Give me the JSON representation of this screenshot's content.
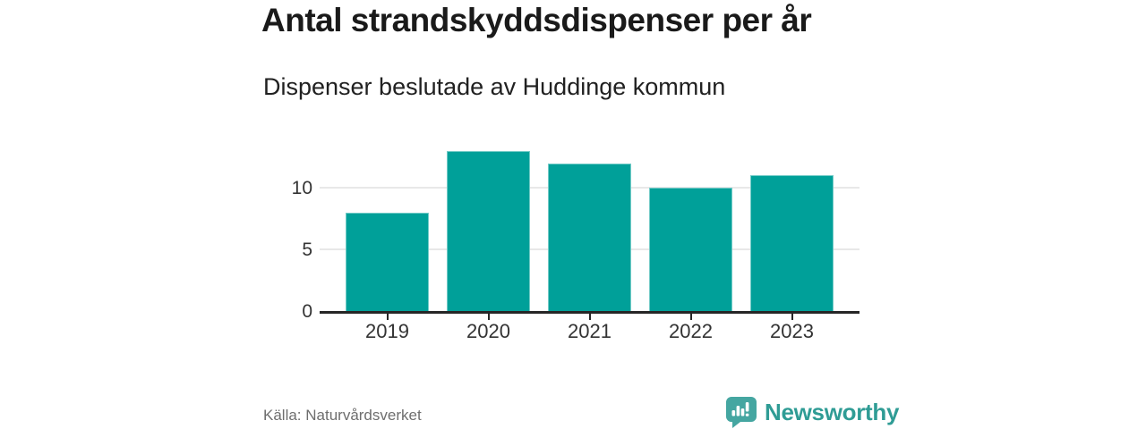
{
  "header": {
    "title": "Antal strandskyddsdispenser per år",
    "subtitle": "Dispenser beslutade av Huddinge kommun"
  },
  "chart_data": {
    "type": "bar",
    "categories": [
      "2019",
      "2020",
      "2021",
      "2022",
      "2023"
    ],
    "values": [
      8,
      13,
      12,
      10,
      11
    ],
    "title": "Antal strandskyddsdispenser per år",
    "subtitle": "Dispenser beslutade av Huddinge kommun",
    "xlabel": "",
    "ylabel": "",
    "ylim": [
      0,
      14
    ],
    "yticks": [
      0,
      5,
      10
    ],
    "grid": "horizontal-only",
    "legend": "none",
    "bar_color": "#00a099"
  },
  "footer": {
    "source": "Källa: Naturvårdsverket",
    "brand": "Newsworthy"
  },
  "colors": {
    "bar": "#00a099",
    "axis": "#262626",
    "gridline": "#e8e8e8",
    "tick_label": "#333333",
    "title_text": "#1a1a1a",
    "source_text": "#6e6e6e",
    "brand_text": "#2f9c95",
    "brand_badge": "#45a6a1"
  }
}
